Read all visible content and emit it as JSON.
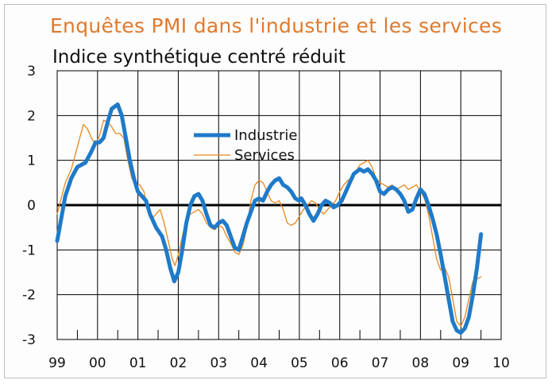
{
  "chart_data": {
    "type": "line",
    "title": "Enquêtes PMI dans l'industrie et les services",
    "subtitle": "Indice synthétique centré réduit",
    "xlabel": "",
    "ylabel": "",
    "x_categories": [
      "99",
      "00",
      "01",
      "02",
      "03",
      "04",
      "05",
      "06",
      "07",
      "08",
      "09",
      "10"
    ],
    "xlim": [
      1999,
      2010
    ],
    "ylim": [
      -3,
      3
    ],
    "y_ticks": [
      3,
      2,
      1,
      0,
      -1,
      -2,
      -3
    ],
    "grid": true,
    "legend_position": "upper-center",
    "colors": {
      "Industrie": "#1f7ac9",
      "Services": "#e6881f"
    },
    "series": [
      {
        "name": "Industrie",
        "points": [
          [
            1999.0,
            -0.8
          ],
          [
            1999.1,
            -0.3
          ],
          [
            1999.2,
            0.2
          ],
          [
            1999.35,
            0.6
          ],
          [
            1999.5,
            0.85
          ],
          [
            1999.7,
            0.95
          ],
          [
            1999.85,
            1.2
          ],
          [
            1999.95,
            1.4
          ],
          [
            2000.05,
            1.4
          ],
          [
            2000.15,
            1.5
          ],
          [
            2000.25,
            1.85
          ],
          [
            2000.35,
            2.15
          ],
          [
            2000.5,
            2.25
          ],
          [
            2000.6,
            2.0
          ],
          [
            2000.7,
            1.5
          ],
          [
            2000.8,
            1.0
          ],
          [
            2000.9,
            0.6
          ],
          [
            2001.0,
            0.3
          ],
          [
            2001.1,
            0.2
          ],
          [
            2001.2,
            0.1
          ],
          [
            2001.3,
            -0.2
          ],
          [
            2001.45,
            -0.5
          ],
          [
            2001.6,
            -0.7
          ],
          [
            2001.7,
            -1.0
          ],
          [
            2001.8,
            -1.4
          ],
          [
            2001.9,
            -1.7
          ],
          [
            2002.0,
            -1.5
          ],
          [
            2002.1,
            -1.0
          ],
          [
            2002.2,
            -0.4
          ],
          [
            2002.3,
            0.0
          ],
          [
            2002.4,
            0.2
          ],
          [
            2002.5,
            0.25
          ],
          [
            2002.6,
            0.1
          ],
          [
            2002.7,
            -0.2
          ],
          [
            2002.8,
            -0.45
          ],
          [
            2002.9,
            -0.5
          ],
          [
            2003.0,
            -0.4
          ],
          [
            2003.1,
            -0.35
          ],
          [
            2003.2,
            -0.45
          ],
          [
            2003.3,
            -0.7
          ],
          [
            2003.4,
            -0.95
          ],
          [
            2003.5,
            -1.0
          ],
          [
            2003.6,
            -0.7
          ],
          [
            2003.7,
            -0.4
          ],
          [
            2003.8,
            -0.15
          ],
          [
            2003.9,
            0.1
          ],
          [
            2004.0,
            0.15
          ],
          [
            2004.1,
            0.1
          ],
          [
            2004.2,
            0.3
          ],
          [
            2004.3,
            0.45
          ],
          [
            2004.4,
            0.55
          ],
          [
            2004.5,
            0.6
          ],
          [
            2004.6,
            0.45
          ],
          [
            2004.7,
            0.4
          ],
          [
            2004.8,
            0.3
          ],
          [
            2004.9,
            0.15
          ],
          [
            2005.0,
            0.1
          ],
          [
            2005.05,
            0.15
          ],
          [
            2005.15,
            0.0
          ],
          [
            2005.25,
            -0.2
          ],
          [
            2005.35,
            -0.35
          ],
          [
            2005.45,
            -0.2
          ],
          [
            2005.55,
            0.0
          ],
          [
            2005.65,
            0.1
          ],
          [
            2005.75,
            0.05
          ],
          [
            2005.85,
            -0.05
          ],
          [
            2005.95,
            0.0
          ],
          [
            2006.05,
            0.1
          ],
          [
            2006.15,
            0.3
          ],
          [
            2006.25,
            0.5
          ],
          [
            2006.35,
            0.7
          ],
          [
            2006.5,
            0.8
          ],
          [
            2006.6,
            0.75
          ],
          [
            2006.7,
            0.8
          ],
          [
            2006.8,
            0.7
          ],
          [
            2006.9,
            0.55
          ],
          [
            2007.0,
            0.3
          ],
          [
            2007.1,
            0.25
          ],
          [
            2007.2,
            0.35
          ],
          [
            2007.3,
            0.4
          ],
          [
            2007.4,
            0.35
          ],
          [
            2007.5,
            0.25
          ],
          [
            2007.6,
            0.1
          ],
          [
            2007.7,
            -0.15
          ],
          [
            2007.8,
            -0.1
          ],
          [
            2007.9,
            0.15
          ],
          [
            2008.0,
            0.35
          ],
          [
            2008.1,
            0.25
          ],
          [
            2008.2,
            0.0
          ],
          [
            2008.3,
            -0.3
          ],
          [
            2008.4,
            -0.65
          ],
          [
            2008.5,
            -1.1
          ],
          [
            2008.6,
            -1.6
          ],
          [
            2008.7,
            -2.1
          ],
          [
            2008.8,
            -2.6
          ],
          [
            2008.9,
            -2.8
          ],
          [
            2009.0,
            -2.85
          ],
          [
            2009.1,
            -2.75
          ],
          [
            2009.2,
            -2.5
          ],
          [
            2009.3,
            -2.0
          ],
          [
            2009.4,
            -1.4
          ],
          [
            2009.5,
            -0.65
          ]
        ]
      },
      {
        "name": "Services",
        "points": [
          [
            1999.0,
            -0.2
          ],
          [
            1999.1,
            0.15
          ],
          [
            1999.2,
            0.5
          ],
          [
            1999.35,
            0.8
          ],
          [
            1999.5,
            1.3
          ],
          [
            1999.65,
            1.8
          ],
          [
            1999.75,
            1.7
          ],
          [
            1999.85,
            1.5
          ],
          [
            1999.95,
            1.35
          ],
          [
            2000.05,
            1.55
          ],
          [
            2000.15,
            1.9
          ],
          [
            2000.25,
            1.85
          ],
          [
            2000.35,
            1.75
          ],
          [
            2000.45,
            1.6
          ],
          [
            2000.55,
            1.6
          ],
          [
            2000.65,
            1.5
          ],
          [
            2000.75,
            1.0
          ],
          [
            2000.85,
            0.6
          ],
          [
            2000.95,
            0.45
          ],
          [
            2001.05,
            0.45
          ],
          [
            2001.15,
            0.3
          ],
          [
            2001.25,
            -0.1
          ],
          [
            2001.35,
            -0.3
          ],
          [
            2001.45,
            -0.2
          ],
          [
            2001.55,
            -0.1
          ],
          [
            2001.65,
            -0.4
          ],
          [
            2001.75,
            -0.8
          ],
          [
            2001.85,
            -1.2
          ],
          [
            2001.92,
            -1.35
          ],
          [
            2002.0,
            -1.1
          ],
          [
            2002.1,
            -0.7
          ],
          [
            2002.2,
            -0.3
          ],
          [
            2002.3,
            -0.2
          ],
          [
            2002.4,
            -0.15
          ],
          [
            2002.5,
            -0.1
          ],
          [
            2002.6,
            -0.2
          ],
          [
            2002.7,
            -0.4
          ],
          [
            2002.8,
            -0.5
          ],
          [
            2002.9,
            -0.55
          ],
          [
            2003.0,
            -0.45
          ],
          [
            2003.1,
            -0.5
          ],
          [
            2003.2,
            -0.7
          ],
          [
            2003.3,
            -0.85
          ],
          [
            2003.4,
            -1.05
          ],
          [
            2003.5,
            -1.1
          ],
          [
            2003.6,
            -0.9
          ],
          [
            2003.7,
            -0.5
          ],
          [
            2003.8,
            0.1
          ],
          [
            2003.9,
            0.45
          ],
          [
            2004.0,
            0.55
          ],
          [
            2004.1,
            0.5
          ],
          [
            2004.2,
            0.3
          ],
          [
            2004.3,
            0.1
          ],
          [
            2004.4,
            0.05
          ],
          [
            2004.5,
            0.1
          ],
          [
            2004.6,
            -0.1
          ],
          [
            2004.7,
            -0.4
          ],
          [
            2004.8,
            -0.45
          ],
          [
            2004.9,
            -0.4
          ],
          [
            2005.0,
            -0.25
          ],
          [
            2005.1,
            -0.1
          ],
          [
            2005.2,
            0.0
          ],
          [
            2005.3,
            0.1
          ],
          [
            2005.4,
            0.05
          ],
          [
            2005.5,
            -0.1
          ],
          [
            2005.6,
            -0.2
          ],
          [
            2005.7,
            -0.1
          ],
          [
            2005.8,
            0.0
          ],
          [
            2005.9,
            0.1
          ],
          [
            2006.0,
            0.3
          ],
          [
            2006.1,
            0.45
          ],
          [
            2006.2,
            0.55
          ],
          [
            2006.3,
            0.6
          ],
          [
            2006.4,
            0.75
          ],
          [
            2006.5,
            0.9
          ],
          [
            2006.6,
            0.95
          ],
          [
            2006.7,
            1.0
          ],
          [
            2006.8,
            0.85
          ],
          [
            2006.9,
            0.6
          ],
          [
            2007.0,
            0.5
          ],
          [
            2007.1,
            0.45
          ],
          [
            2007.2,
            0.4
          ],
          [
            2007.3,
            0.45
          ],
          [
            2007.4,
            0.35
          ],
          [
            2007.5,
            0.4
          ],
          [
            2007.6,
            0.45
          ],
          [
            2007.7,
            0.35
          ],
          [
            2007.8,
            0.4
          ],
          [
            2007.9,
            0.45
          ],
          [
            2008.0,
            0.3
          ],
          [
            2008.1,
            0.15
          ],
          [
            2008.2,
            -0.2
          ],
          [
            2008.3,
            -0.7
          ],
          [
            2008.4,
            -1.2
          ],
          [
            2008.5,
            -1.45
          ],
          [
            2008.6,
            -1.4
          ],
          [
            2008.7,
            -1.6
          ],
          [
            2008.8,
            -2.1
          ],
          [
            2008.9,
            -2.6
          ],
          [
            2009.0,
            -2.7
          ],
          [
            2009.1,
            -2.5
          ],
          [
            2009.2,
            -2.1
          ],
          [
            2009.3,
            -1.7
          ],
          [
            2009.4,
            -1.65
          ],
          [
            2009.5,
            -1.6
          ]
        ]
      }
    ]
  }
}
